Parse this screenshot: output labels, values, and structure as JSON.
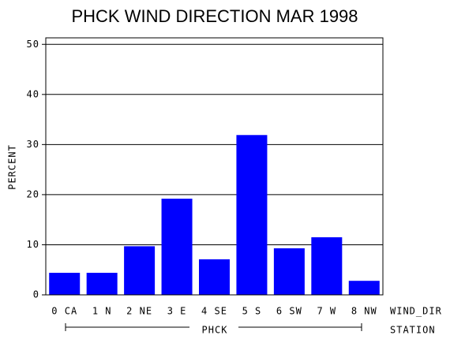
{
  "chart_data": {
    "type": "bar",
    "title": "PHCK WIND DIRECTION MAR 1998",
    "y_label": "PERCENT",
    "x_label": "WIND_DIR",
    "group_label": "PHCK",
    "group_axis_label": "STATION",
    "categories": [
      "0 CA",
      "1 N",
      "2 NE",
      "3 E",
      "4 SE",
      "5 S",
      "6 SW",
      "7 W",
      "8 NW"
    ],
    "values": [
      4.4,
      4.4,
      9.7,
      19.2,
      7.1,
      31.9,
      9.3,
      11.5,
      2.8
    ],
    "color": "#0000ff",
    "ylim": [
      0,
      51.3
    ],
    "yticks": [
      0,
      10,
      20,
      30,
      40,
      50
    ],
    "grid": true
  }
}
